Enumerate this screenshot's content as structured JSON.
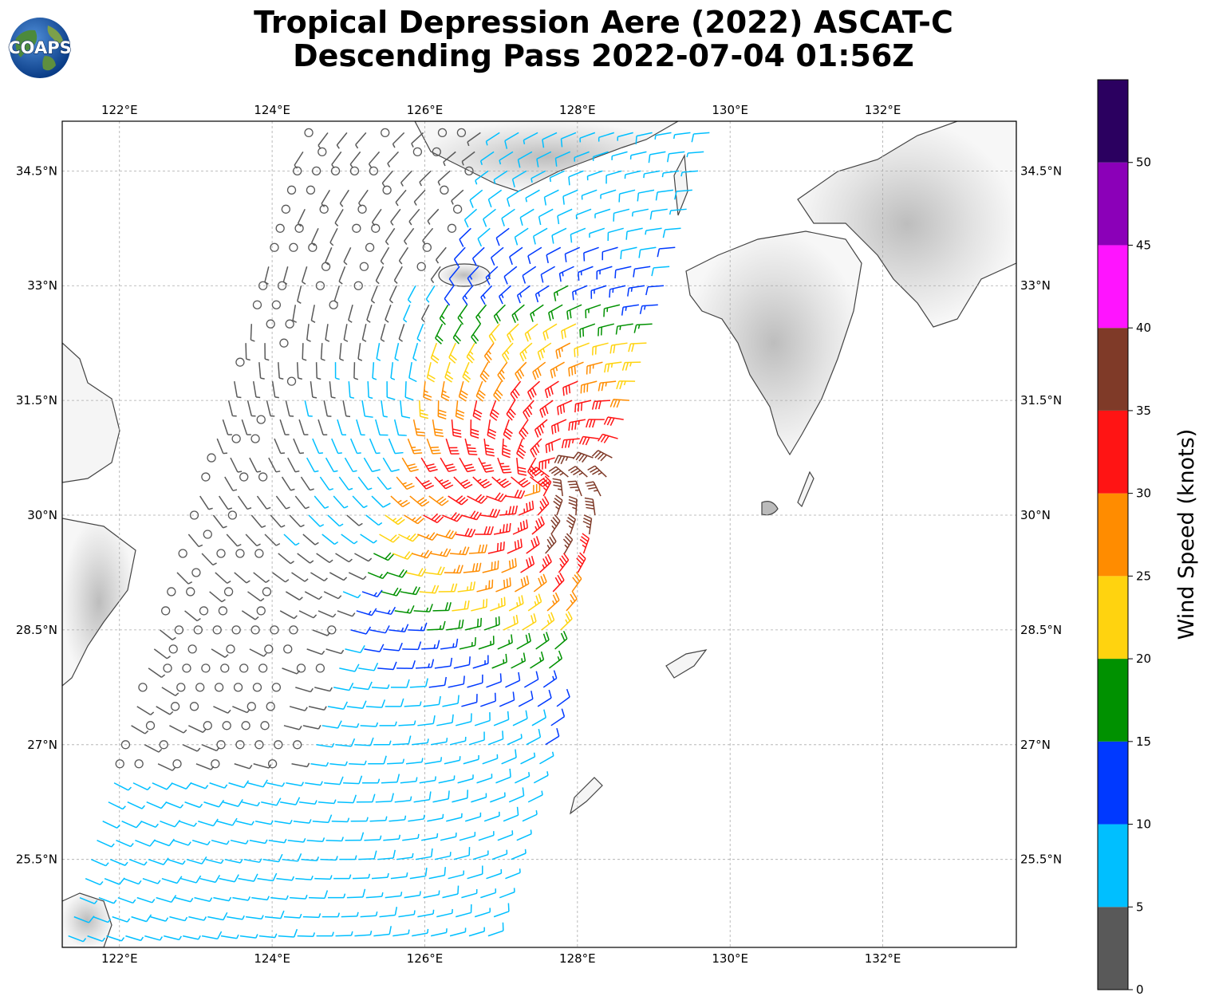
{
  "title": {
    "line1": "Tropical Depression Aere (2022) ASCAT-C",
    "line2": "Descending Pass 2022-07-04 01:56Z"
  },
  "logo": {
    "text": "COAPS",
    "icon": "globe-icon"
  },
  "map": {
    "lon_range": [
      121.25,
      133.75
    ],
    "lat_range": [
      24.35,
      35.15
    ],
    "lon_ticks": [
      "122°E",
      "124°E",
      "126°E",
      "128°E",
      "130°E",
      "132°E"
    ],
    "lon_tick_values": [
      122,
      124,
      126,
      128,
      130,
      132
    ],
    "lat_ticks": [
      "34.5°N",
      "33°N",
      "31.5°N",
      "30°N",
      "28.5°N",
      "27°N",
      "25.5°N"
    ],
    "lat_tick_values": [
      34.5,
      33,
      31.5,
      30,
      28.5,
      27,
      25.5
    ],
    "gridlines": true,
    "storm_center": {
      "lon": 127.5,
      "lat": 30.5
    }
  },
  "colorbar": {
    "label": "Wind Speed (knots)",
    "tick_labels": [
      "0",
      "5",
      "10",
      "15",
      "20",
      "25",
      "30",
      "35",
      "40",
      "45",
      "50"
    ],
    "bins": [
      {
        "min": 0,
        "max": 5,
        "color": "#595959"
      },
      {
        "min": 5,
        "max": 10,
        "color": "#00bfff"
      },
      {
        "min": 10,
        "max": 15,
        "color": "#0039ff"
      },
      {
        "min": 15,
        "max": 20,
        "color": "#009100"
      },
      {
        "min": 20,
        "max": 25,
        "color": "#ffd30f"
      },
      {
        "min": 25,
        "max": 30,
        "color": "#ff8c00"
      },
      {
        "min": 30,
        "max": 35,
        "color": "#ff1414"
      },
      {
        "min": 35,
        "max": 40,
        "color": "#7f3a28"
      },
      {
        "min": 40,
        "max": 45,
        "color": "#ff14ff"
      },
      {
        "min": 45,
        "max": 50,
        "color": "#8b00b8"
      },
      {
        "min": 50,
        "max": 55,
        "color": "#2b0060"
      }
    ]
  }
}
